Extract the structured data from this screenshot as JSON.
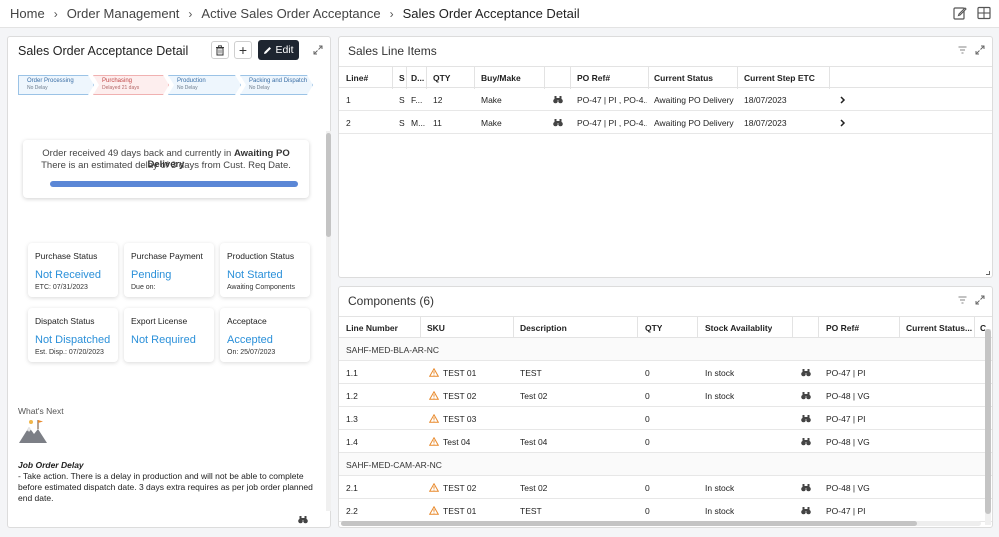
{
  "breadcrumb": [
    "Home",
    "Order Management",
    "Active Sales Order Acceptance",
    "Sales Order Acceptance Detail"
  ],
  "left_panel": {
    "title": "Sales Order Acceptance Detail",
    "edit_label": "Edit",
    "stages": [
      {
        "name": "Order Processing",
        "status": "No Delay"
      },
      {
        "name": "Purchasing",
        "status": "Delayed 21 days"
      },
      {
        "name": "Production",
        "status": "No Delay"
      },
      {
        "name": "Packing and Dispatch",
        "status": "No Delay"
      }
    ],
    "status_summary": {
      "prefix": "Order received 49 days back and currently in",
      "current_stage": "Awaiting PO Delivery",
      "delay_note": "There is an estimated delay of 3 days from Cust. Req Date.",
      "progress_fraction": 1.0
    },
    "tiles": [
      {
        "label": "Purchase Status",
        "value": "Not Received",
        "sub": "ETC: 07/31/2023"
      },
      {
        "label": "Purchase Payment",
        "value": "Pending",
        "sub": "Due on:"
      },
      {
        "label": "Production Status",
        "value": "Not Started",
        "sub": "Awaiting Components"
      },
      {
        "label": "Dispatch Status",
        "value": "Not Dispatched",
        "sub": "Est. Disp.: 07/20/2023"
      },
      {
        "label": "Export License",
        "value": "Not Required",
        "sub": ""
      },
      {
        "label": "Acceptace",
        "value": "Accepted",
        "sub": "On: 25/07/2023"
      }
    ],
    "whats_next_label": "What's Next",
    "job_order": {
      "title": "Job Order Delay",
      "description": "- Take action. There is a delay in production and will not be able to complete before estimated dispatch date. 3 days extra requires as per job order planned end date."
    }
  },
  "sales_lines": {
    "title": "Sales Line Items",
    "columns": [
      "Line#",
      "S",
      "D...",
      "QTY",
      "Buy/Make",
      "",
      "PO Ref#",
      "Current Status",
      "Current Step ETC"
    ],
    "rows": [
      {
        "line": "1",
        "s": "S",
        "d": "F...",
        "qty": "12",
        "buy_make": "Make",
        "po_ref": "PO-47 | PI , PO-4...",
        "status": "Awaiting PO Delivery",
        "etc": "18/07/2023"
      },
      {
        "line": "2",
        "s": "S",
        "d": "M...",
        "qty": "11",
        "buy_make": "Make",
        "po_ref": "PO-47 | PI , PO-4...",
        "status": "Awaiting PO Delivery",
        "etc": "18/07/2023"
      }
    ]
  },
  "components": {
    "title": "Components (6)",
    "columns": [
      "Line Number",
      "SKU",
      "Description",
      "QTY",
      "Stock Availablity",
      "",
      "PO Ref#",
      "Current Status...",
      "C"
    ],
    "groups": [
      {
        "name": "SAHF-MED-BLA-AR-NC",
        "rows": [
          {
            "line": "1.1",
            "sku": "TEST 01",
            "desc": "TEST",
            "qty": "0",
            "stock": "In stock",
            "po_ref": "PO-47 | PI"
          },
          {
            "line": "1.2",
            "sku": "TEST 02",
            "desc": "Test 02",
            "qty": "0",
            "stock": "In stock",
            "po_ref": "PO-48 | VG"
          },
          {
            "line": "1.3",
            "sku": "TEST 03",
            "desc": "",
            "qty": "0",
            "stock": "",
            "po_ref": "PO-47 | PI"
          },
          {
            "line": "1.4",
            "sku": "Test 04",
            "desc": "Test 04",
            "qty": "0",
            "stock": "",
            "po_ref": "PO-48 | VG"
          }
        ]
      },
      {
        "name": "SAHF-MED-CAM-AR-NC",
        "rows": [
          {
            "line": "2.1",
            "sku": "TEST 02",
            "desc": "Test 02",
            "qty": "0",
            "stock": "In stock",
            "po_ref": "PO-48 | VG"
          },
          {
            "line": "2.2",
            "sku": "TEST 01",
            "desc": "TEST",
            "qty": "0",
            "stock": "In stock",
            "po_ref": "PO-47 | PI"
          }
        ]
      }
    ]
  },
  "colors": {
    "accent": "#2b90d9",
    "edit_button": "#1e2530",
    "warning": "#e8892b",
    "delayed": "#c04545"
  }
}
